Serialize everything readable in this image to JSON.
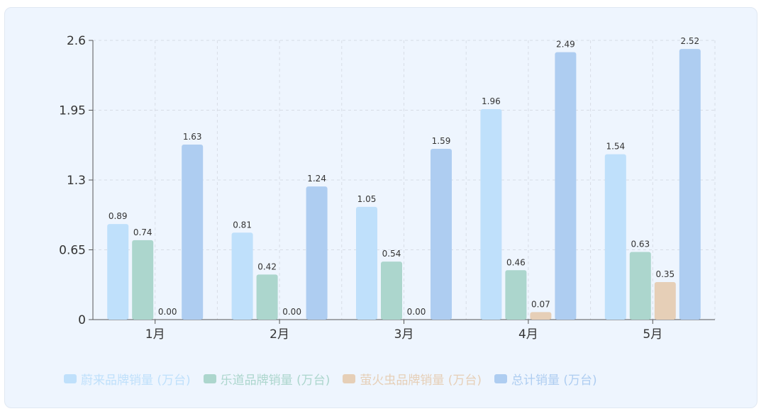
{
  "chart_data": {
    "type": "bar",
    "categories": [
      "1月",
      "2月",
      "3月",
      "4月",
      "5月"
    ],
    "series": [
      {
        "name": "蔚来品牌销量 (万台)",
        "color": "#bfe0fb",
        "values": [
          0.89,
          0.81,
          1.05,
          1.96,
          1.54
        ]
      },
      {
        "name": "乐道品牌销量 (万台)",
        "color": "#acd6cd",
        "values": [
          0.74,
          0.42,
          0.54,
          0.46,
          0.63
        ]
      },
      {
        "name": "萤火虫品牌销量 (万台)",
        "color": "#e6cfb7",
        "values": [
          0.0,
          0.0,
          0.0,
          0.07,
          0.35
        ]
      },
      {
        "name": "总计销量 (万台)",
        "color": "#aecdf1",
        "values": [
          1.63,
          1.24,
          1.59,
          2.49,
          2.52
        ]
      }
    ],
    "ylim": [
      0,
      2.6
    ],
    "yticks": [
      "0",
      "0.65",
      "1.3",
      "1.95",
      "2.6"
    ],
    "grid": true,
    "legend_position": "bottom"
  }
}
